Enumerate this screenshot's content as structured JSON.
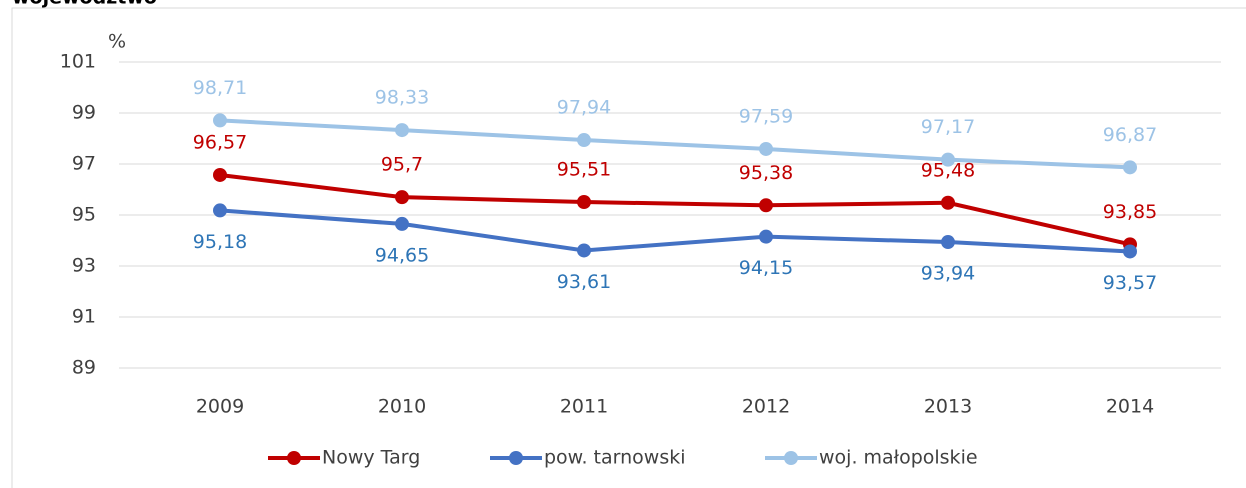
{
  "chart_data": {
    "type": "line",
    "title": "województwo",
    "y_label": "%",
    "categories": [
      "2009",
      "2010",
      "2011",
      "2012",
      "2013",
      "2014"
    ],
    "series": [
      {
        "name": "Nowy Targ",
        "color": "#c00000",
        "values": [
          96.57,
          95.7,
          95.51,
          95.38,
          95.48,
          93.85
        ],
        "value_labels": [
          "96,57",
          "95,7",
          "95,51",
          "95,38",
          "95,48",
          "93,85"
        ]
      },
      {
        "name": "pow. tarnowski",
        "color": "#4472c4",
        "values": [
          95.18,
          94.65,
          93.61,
          94.15,
          93.94,
          93.57
        ],
        "value_labels": [
          "95,18",
          "94,65",
          "93,61",
          "94,15",
          "93,94",
          "93,57"
        ]
      },
      {
        "name": "woj. małopolskie",
        "color": "#9dc3e6",
        "values": [
          98.71,
          98.33,
          97.94,
          97.59,
          97.17,
          96.87
        ],
        "value_labels": [
          "98,71",
          "98,33",
          "97,94",
          "97,59",
          "97,17",
          "96,87"
        ]
      }
    ],
    "ylim": [
      89,
      101
    ],
    "yticks": [
      89,
      91,
      93,
      95,
      97,
      99,
      101
    ],
    "grid": true,
    "legend": "bottom"
  }
}
